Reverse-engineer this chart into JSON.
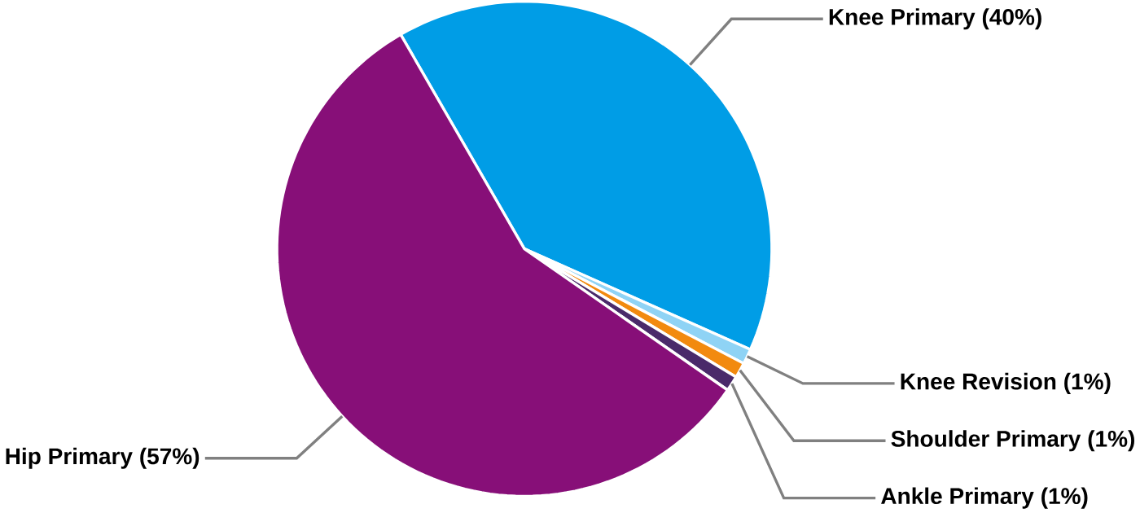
{
  "chart_data": {
    "type": "pie",
    "categories": [
      "Knee Primary",
      "Knee Revision",
      "Shoulder Primary",
      "Ankle Primary",
      "Hip Primary"
    ],
    "values": [
      40,
      1,
      1,
      1,
      57
    ],
    "value_labels": [
      "(40%)",
      "(1%)",
      "(1%)",
      "(1%)",
      "(57%)"
    ],
    "colors": [
      "#009de6",
      "#8fd3f5",
      "#f28a0f",
      "#4a2a6a",
      "#870f78"
    ]
  }
}
